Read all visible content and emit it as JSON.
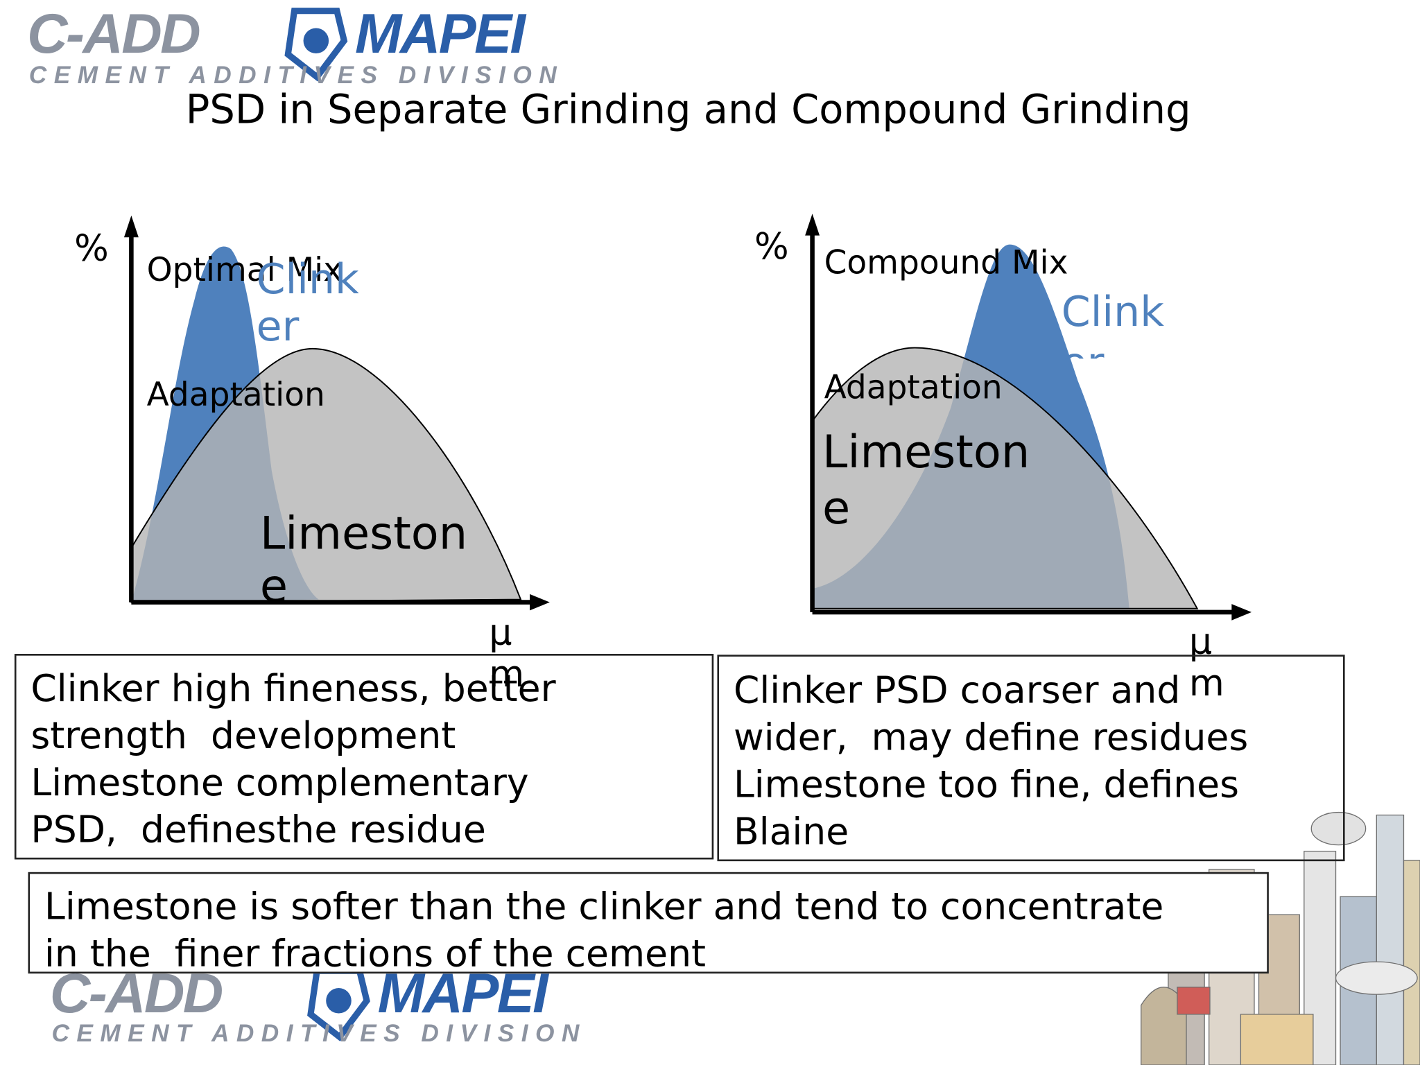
{
  "logo": {
    "brand": "C-ADD",
    "company": "MAPEI",
    "division": "CEMENT ADDITIVES DIVISION"
  },
  "title": "PSD in Separate Grinding and Compound Grinding",
  "diagrams": [
    {
      "heading": [
        "Optimal Mix",
        "Adaptation"
      ],
      "y_axis_label": "%",
      "x_axis_label": "μm",
      "curves": {
        "clinker": "Clinker",
        "limestone": "Limestone"
      }
    },
    {
      "heading": [
        "Compound Mix",
        "Adaptation"
      ],
      "y_axis_label": "%",
      "x_axis_label": "μm",
      "curves": {
        "clinker": "Clinker",
        "limestone": "Limestone"
      }
    }
  ],
  "boxes": [
    {
      "lines": [
        "Clinker high fineness, better",
        "strength  development",
        "Limestone complementary",
        "PSD,  definesthe residue"
      ]
    },
    {
      "lines": [
        "Clinker PSD coarser and",
        "wider,  may define residues",
        "Limestone too fine, defines",
        "Blaine"
      ]
    },
    {
      "lines": [
        "Limestone is softer than the clinker and tend to concentrate",
        "in the  finer fractions of the cement"
      ]
    }
  ]
}
